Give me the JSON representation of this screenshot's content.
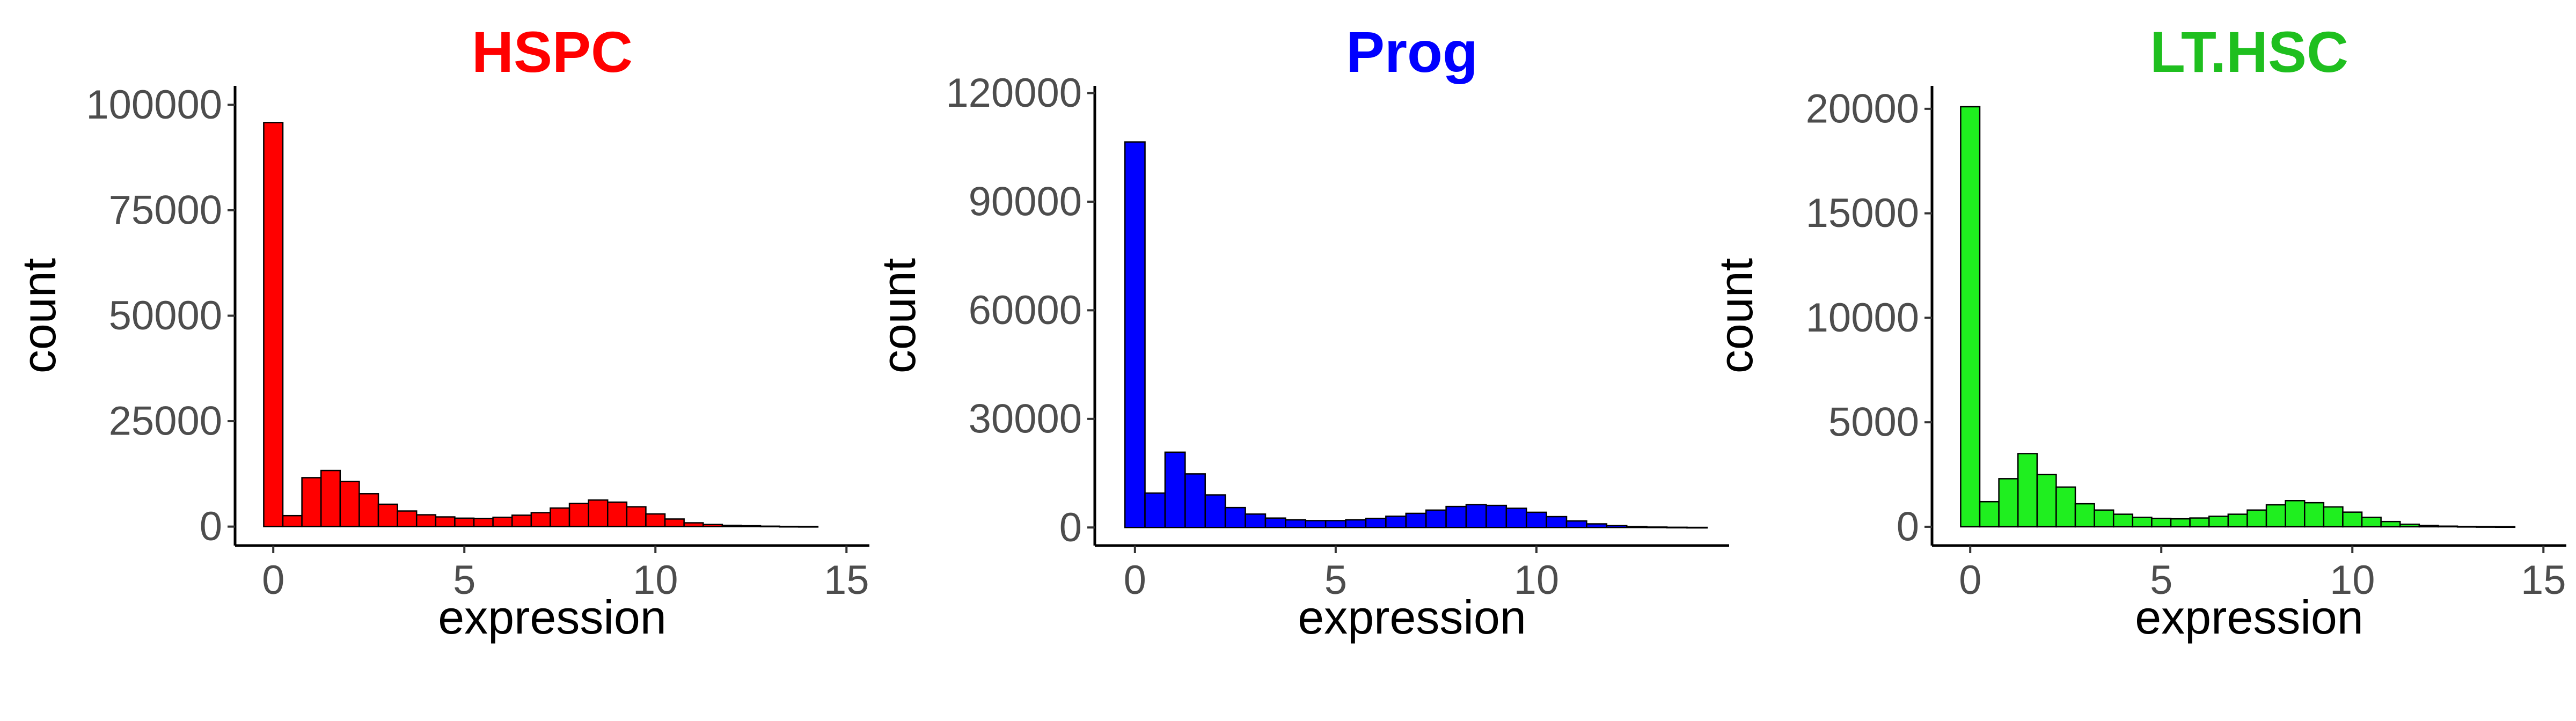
{
  "chart_data": [
    {
      "type": "bar",
      "title": "HSPC",
      "title_color": "#ff0000",
      "fill_color": "#ff0000",
      "xlabel": "expression",
      "ylabel": "count",
      "xticks": [
        0,
        5,
        10,
        15
      ],
      "yticks": [
        0,
        25000,
        50000,
        75000,
        100000
      ],
      "xlim": [
        -1.0,
        15.6
      ],
      "ylim": [
        -4500,
        104500
      ],
      "bin_width": 0.5,
      "bin_centers": [
        0,
        0.5,
        1,
        1.5,
        2,
        2.5,
        3,
        3.5,
        4,
        4.5,
        5,
        5.5,
        6,
        6.5,
        7,
        7.5,
        8,
        8.5,
        9,
        9.5,
        10,
        10.5,
        11,
        11.5,
        12,
        12.5,
        13,
        13.5,
        14
      ],
      "values": [
        95800,
        2600,
        11600,
        13300,
        10700,
        7800,
        5300,
        3700,
        2800,
        2300,
        2000,
        1900,
        2200,
        2700,
        3300,
        4400,
        5500,
        6300,
        5800,
        4700,
        3000,
        1800,
        900,
        500,
        300,
        200,
        100,
        50,
        30
      ],
      "grid": false,
      "legend": "none"
    },
    {
      "type": "bar",
      "title": "Prog",
      "title_color": "#0000ff",
      "fill_color": "#0000ff",
      "xlabel": "expression",
      "ylabel": "count",
      "xticks": [
        0,
        5,
        10
      ],
      "yticks": [
        0,
        30000,
        60000,
        90000,
        120000
      ],
      "xlim": [
        -1.0,
        14.8
      ],
      "ylim": [
        -5000,
        122000
      ],
      "bin_width": 0.5,
      "bin_centers": [
        0,
        0.5,
        1,
        1.5,
        2,
        2.5,
        3,
        3.5,
        4,
        4.5,
        5,
        5.5,
        6,
        6.5,
        7,
        7.5,
        8,
        8.5,
        9,
        9.5,
        10,
        10.5,
        11,
        11.5,
        12,
        12.5,
        13,
        13.5,
        14
      ],
      "values": [
        106500,
        9500,
        20800,
        14800,
        9000,
        5500,
        3700,
        2600,
        2100,
        1900,
        1900,
        2100,
        2500,
        3100,
        3900,
        4800,
        5800,
        6300,
        6100,
        5300,
        4200,
        3000,
        1800,
        1000,
        500,
        250,
        120,
        60,
        30
      ],
      "grid": false,
      "legend": "none"
    },
    {
      "type": "bar",
      "title": "LT.HSC",
      "title_color": "#1fbf1f",
      "fill_color": "#1fef1f",
      "xlabel": "expression",
      "ylabel": "count",
      "xticks": [
        0,
        5,
        10,
        15
      ],
      "yticks": [
        0,
        5000,
        10000,
        15000,
        20000
      ],
      "xlim": [
        -1.0,
        15.6
      ],
      "ylim": [
        -900,
        21100
      ],
      "bin_width": 0.5,
      "bin_centers": [
        0,
        0.5,
        1,
        1.5,
        2,
        2.5,
        3,
        3.5,
        4,
        4.5,
        5,
        5.5,
        6,
        6.5,
        7,
        7.5,
        8,
        8.5,
        9,
        9.5,
        10,
        10.5,
        11,
        11.5,
        12,
        12.5,
        13,
        13.5,
        14
      ],
      "values": [
        20100,
        1200,
        2300,
        3500,
        2500,
        1900,
        1100,
        800,
        600,
        450,
        400,
        380,
        420,
        500,
        600,
        800,
        1050,
        1250,
        1150,
        950,
        700,
        450,
        250,
        120,
        60,
        30,
        15,
        8,
        4
      ],
      "grid": false,
      "legend": "none"
    }
  ]
}
